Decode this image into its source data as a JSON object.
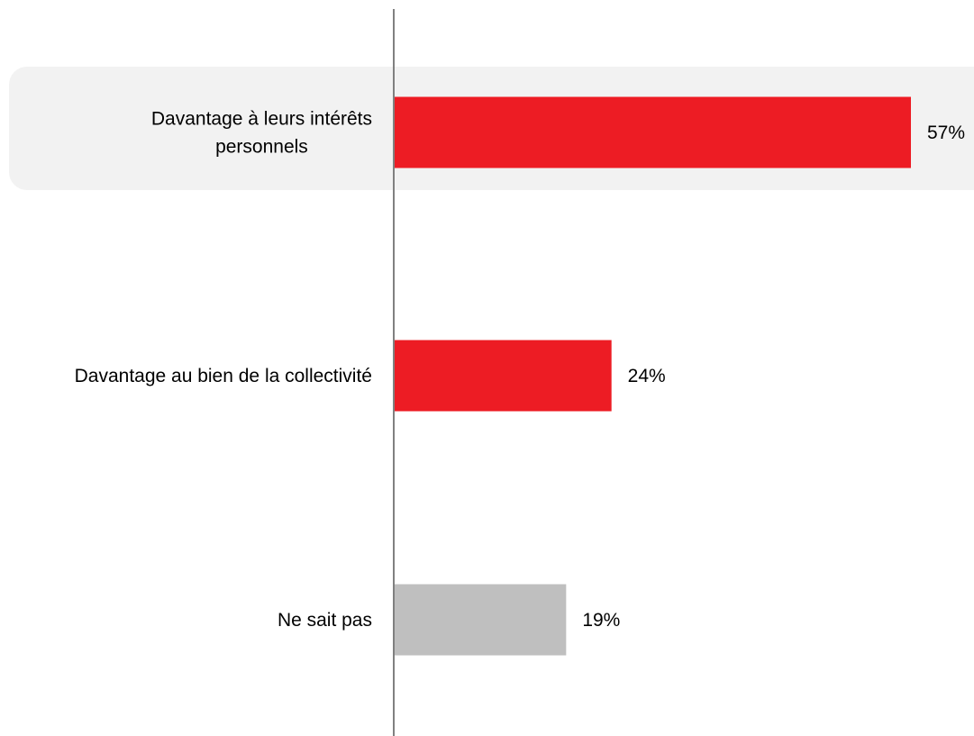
{
  "chart_data": {
    "type": "bar",
    "orientation": "horizontal",
    "categories": [
      [
        "Davantage à leurs intérêts",
        "personnels"
      ],
      [
        "Davantage au bien de la collectivité"
      ],
      [
        "Ne sait pas"
      ]
    ],
    "values": [
      57,
      24,
      19
    ],
    "value_labels": [
      "57%",
      "24%",
      "19%"
    ],
    "bar_colors": [
      "#ed1c24",
      "#ed1c24",
      "#bfbfbf"
    ],
    "highlighted_category": 0,
    "highlight_color": "#f2f2f2",
    "axis_color": "#808080",
    "xlim": [
      0,
      57
    ],
    "title": "",
    "xlabel": "",
    "ylabel": "",
    "grid": false,
    "legend": "none"
  }
}
